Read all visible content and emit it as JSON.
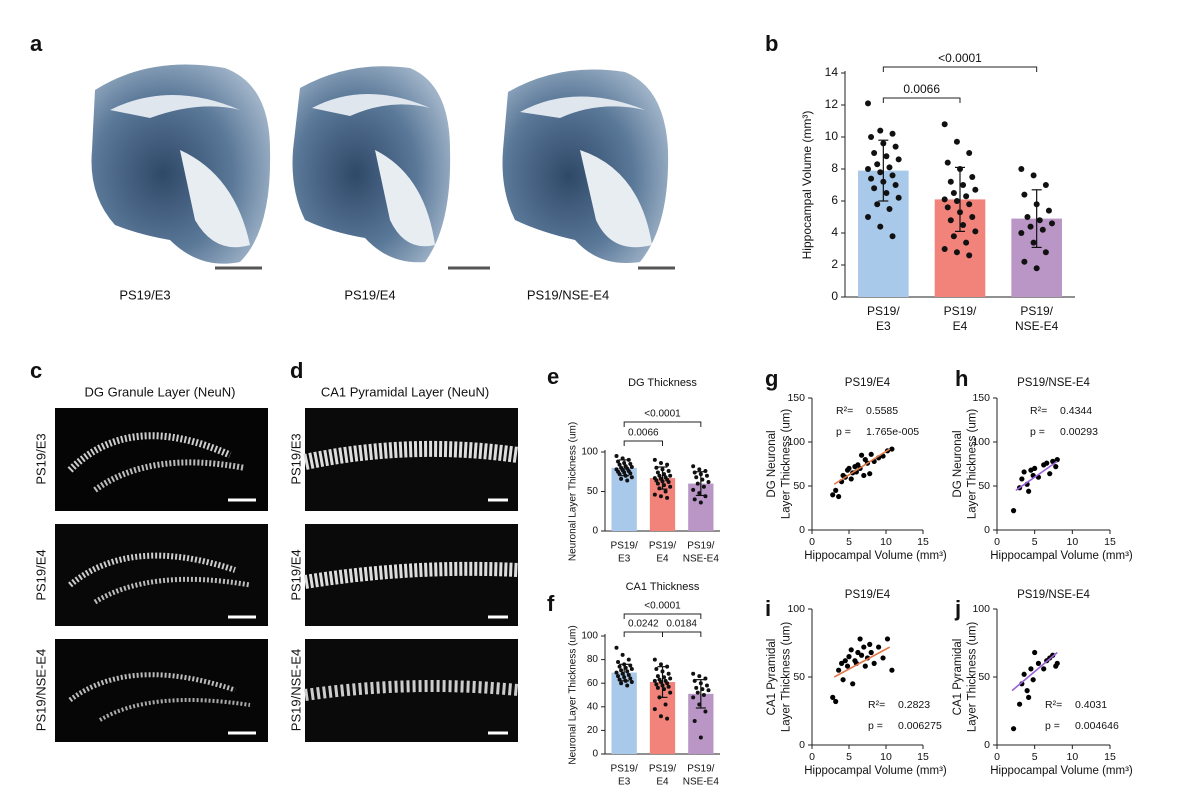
{
  "image_panels": [
    {
      "letter": "a",
      "captions": [
        "PS19/E3",
        "PS19/E4",
        "PS19/NSE-E4"
      ]
    },
    {
      "letter": "c",
      "title": "DG Granule Layer (NeuN)",
      "row_labels": [
        "PS19/E3",
        "PS19/E4",
        "PS19/NSE-E4"
      ]
    },
    {
      "letter": "d",
      "title": "CA1 Pyramidal Layer (NeuN)",
      "row_labels": [
        "PS19/E3",
        "PS19/E4",
        "PS19/NSE-E4"
      ]
    }
  ],
  "chart_data": [
    {
      "type": "bar",
      "panel": "b",
      "y_label": [
        "Hippocampal Volume (mm³)"
      ],
      "categories": [
        [
          "PS19/",
          "E3"
        ],
        [
          "PS19/",
          "E4"
        ],
        [
          "PS19/",
          "NSE-E4"
        ]
      ],
      "colors": [
        "#a9c9eb",
        "#f2837b",
        "#b996c6"
      ],
      "values": [
        7.9,
        6.1,
        4.9
      ],
      "errors": [
        1.9,
        2.0,
        1.8
      ],
      "points": [
        [
          12.1,
          10.4,
          10.2,
          10.0,
          9.6,
          9.4,
          9.0,
          8.8,
          8.6,
          8.3,
          8.1,
          8.0,
          7.8,
          7.6,
          7.4,
          7.2,
          7.0,
          6.8,
          6.5,
          6.2,
          5.8,
          5.5,
          5.0,
          4.4,
          3.8
        ],
        [
          10.8,
          9.7,
          9.0,
          8.4,
          8.0,
          7.5,
          7.2,
          7.0,
          6.7,
          6.5,
          6.3,
          6.1,
          6.0,
          5.8,
          5.6,
          5.3,
          5.0,
          4.8,
          4.5,
          4.1,
          3.8,
          3.4,
          3.0,
          2.8,
          2.6
        ],
        [
          8.0,
          7.6,
          7.0,
          6.4,
          5.8,
          5.4,
          5.0,
          4.8,
          4.6,
          4.4,
          4.2,
          4.0,
          3.4,
          2.8,
          2.2,
          1.8
        ]
      ],
      "ylim": [
        0,
        14
      ],
      "yticks": [
        0,
        2,
        4,
        6,
        8,
        10,
        12,
        14
      ],
      "brackets": [
        {
          "from": 0,
          "to": 1,
          "label": "0.0066"
        },
        {
          "from": 0,
          "to": 2,
          "label": "<0.0001"
        }
      ]
    },
    {
      "type": "bar",
      "panel": "e",
      "title": "DG Thickness",
      "y_label": [
        "Neuronal Layer Thickness (um)"
      ],
      "categories": [
        [
          "PS19/",
          "E3"
        ],
        [
          "PS19/",
          "E4"
        ],
        [
          "PS19/",
          "NSE-E4"
        ]
      ],
      "colors": [
        "#a9c9eb",
        "#f2837b",
        "#b996c6"
      ],
      "values": [
        80,
        67,
        60
      ],
      "errors": [
        10,
        14,
        15
      ],
      "points": [
        [
          95,
          92,
          90,
          88,
          86,
          85,
          84,
          82,
          81,
          80,
          79,
          78,
          77,
          76,
          75,
          74,
          73,
          72,
          70,
          68,
          66,
          64
        ],
        [
          90,
          86,
          84,
          80,
          78,
          76,
          74,
          72,
          70,
          70,
          68,
          67,
          66,
          65,
          64,
          63,
          62,
          60,
          58,
          56,
          54,
          50,
          46,
          44,
          42
        ],
        [
          82,
          78,
          76,
          74,
          72,
          70,
          68,
          65,
          62,
          60,
          56,
          52,
          48,
          44,
          40,
          36
        ]
      ],
      "ylim": [
        0,
        100
      ],
      "yticks": [
        0,
        50,
        100
      ],
      "brackets": [
        {
          "from": 0,
          "to": 1,
          "label": "0.0066"
        },
        {
          "from": 0,
          "to": 2,
          "label": "<0.0001"
        }
      ]
    },
    {
      "type": "bar",
      "panel": "f",
      "title": "CA1 Thickness",
      "y_label": [
        "Neuronal Layer Thickness (um)"
      ],
      "categories": [
        [
          "PS19/",
          "E3"
        ],
        [
          "PS19/",
          "E4"
        ],
        [
          "PS19/",
          "NSE-E4"
        ]
      ],
      "colors": [
        "#a9c9eb",
        "#f2837b",
        "#b996c6"
      ],
      "values": [
        69,
        61,
        51
      ],
      "errors": [
        7,
        13,
        12
      ],
      "points": [
        [
          90,
          84,
          80,
          78,
          76,
          75,
          74,
          73,
          72,
          71,
          70,
          69,
          68,
          67,
          66,
          65,
          64,
          63,
          62,
          61,
          60,
          58
        ],
        [
          80,
          76,
          74,
          72,
          70,
          68,
          66,
          65,
          64,
          63,
          62,
          62,
          61,
          60,
          59,
          58,
          57,
          56,
          55,
          52,
          48,
          42,
          38,
          32,
          30
        ],
        [
          68,
          66,
          64,
          62,
          60,
          58,
          56,
          55,
          54,
          52,
          50,
          48,
          42,
          36,
          28,
          14
        ]
      ],
      "ylim": [
        0,
        100
      ],
      "yticks": [
        0,
        20,
        40,
        60,
        80,
        100
      ],
      "brackets": [
        {
          "from": 0,
          "to": 1,
          "label": "0.0242"
        },
        {
          "from": 1,
          "to": 2,
          "label": "0.0184"
        },
        {
          "from": 0,
          "to": 2,
          "label": "<0.0001"
        }
      ]
    },
    {
      "type": "scatter",
      "panel": "g",
      "title": "PS19/E4",
      "x_label": "Hippocampal Volume (mm³)",
      "y_label": [
        "DG Neuronal",
        "Layer Thickness (um)"
      ],
      "x": [
        2.8,
        3.2,
        3.6,
        4.0,
        4.2,
        4.5,
        4.8,
        5.0,
        5.3,
        5.5,
        5.8,
        6.0,
        6.2,
        6.5,
        6.7,
        7.0,
        7.2,
        7.5,
        7.8,
        8.0,
        8.4,
        9.0,
        9.6,
        10.2,
        10.8
      ],
      "y": [
        40,
        45,
        38,
        55,
        62,
        60,
        68,
        70,
        58,
        65,
        72,
        66,
        74,
        70,
        85,
        62,
        80,
        76,
        64,
        86,
        78,
        82,
        84,
        90,
        92
      ],
      "color": "#000000",
      "fit": {
        "x": [
          3,
          10.5
        ],
        "y": [
          52,
          92
        ],
        "color": "#e07a4a"
      },
      "stats": {
        "r2_label": "R²=",
        "r2": "0.5585",
        "p_label": "p =",
        "p": "1.765e-005"
      },
      "xlim": [
        0,
        15
      ],
      "xticks": [
        0,
        5,
        10,
        15
      ],
      "ylim": [
        0,
        150
      ],
      "yticks": [
        0,
        50,
        100,
        150
      ]
    },
    {
      "type": "scatter",
      "panel": "h",
      "title": "PS19/NSE-E4",
      "x_label": "Hippocampal Volume (mm³)",
      "y_label": [
        "DG Neuronal",
        "Layer Thickness (um)"
      ],
      "x": [
        2.2,
        3.0,
        3.3,
        3.6,
        4.0,
        4.2,
        4.5,
        4.8,
        5.0,
        5.5,
        6.2,
        6.6,
        7.0,
        7.4,
        7.8,
        8.0
      ],
      "y": [
        22,
        48,
        58,
        66,
        52,
        44,
        68,
        62,
        70,
        60,
        74,
        76,
        64,
        78,
        72,
        80
      ],
      "color": "#000000",
      "fit": {
        "x": [
          2.5,
          8
        ],
        "y": [
          45,
          78
        ],
        "color": "#9a62d8"
      },
      "stats": {
        "r2_label": "R²=",
        "r2": "0.4344",
        "p_label": "p =",
        "p": "0.00293"
      },
      "xlim": [
        0,
        15
      ],
      "xticks": [
        0,
        5,
        10,
        15
      ],
      "ylim": [
        0,
        150
      ],
      "yticks": [
        0,
        50,
        100,
        150
      ]
    },
    {
      "type": "scatter",
      "panel": "i",
      "title": "PS19/E4",
      "x_label": "Hippocampal Volume (mm³)",
      "y_label": [
        "CA1 Pyramidal",
        "Layer Thickness (um)"
      ],
      "x": [
        2.8,
        3.2,
        3.6,
        4.0,
        4.2,
        4.5,
        4.8,
        5.0,
        5.3,
        5.5,
        5.8,
        6.0,
        6.2,
        6.5,
        6.7,
        7.0,
        7.2,
        7.5,
        7.8,
        8.0,
        8.4,
        9.0,
        9.6,
        10.2,
        10.8
      ],
      "y": [
        35,
        32,
        55,
        60,
        48,
        62,
        58,
        65,
        70,
        45,
        62,
        60,
        68,
        78,
        66,
        72,
        58,
        64,
        74,
        68,
        60,
        72,
        64,
        78,
        55
      ],
      "color": "#000000",
      "fit": {
        "x": [
          3,
          10.5
        ],
        "y": [
          50,
          72
        ],
        "color": "#e07a4a"
      },
      "stats": {
        "r2_label": "R²=",
        "r2": "0.2823",
        "p_label": "p =",
        "p": "0.006275"
      },
      "xlim": [
        0,
        15
      ],
      "xticks": [
        0,
        5,
        10,
        15
      ],
      "ylim": [
        0,
        100
      ],
      "yticks": [
        0,
        50,
        100
      ]
    },
    {
      "type": "scatter",
      "panel": "j",
      "title": "PS19/NSE-E4",
      "x_label": "Hippocampal Volume (mm³)",
      "y_label": [
        "CA1 Pyramidal",
        "Layer Thickness (um)"
      ],
      "x": [
        2.2,
        3.0,
        3.3,
        3.6,
        4.0,
        4.2,
        4.5,
        4.8,
        5.0,
        5.5,
        6.2,
        6.6,
        7.0,
        7.4,
        7.8,
        8.0
      ],
      "y": [
        12,
        30,
        45,
        52,
        40,
        35,
        56,
        48,
        68,
        60,
        56,
        62,
        64,
        66,
        58,
        60
      ],
      "color": "#000000",
      "fit": {
        "x": [
          2,
          8
        ],
        "y": [
          40,
          68
        ],
        "color": "#9a62d8"
      },
      "stats": {
        "r2_label": "R²=",
        "r2": "0.4031",
        "p_label": "p =",
        "p": "0.004646"
      },
      "xlim": [
        0,
        15
      ],
      "xticks": [
        0,
        5,
        10,
        15
      ],
      "ylim": [
        0,
        100
      ],
      "yticks": [
        0,
        50,
        100
      ]
    }
  ]
}
